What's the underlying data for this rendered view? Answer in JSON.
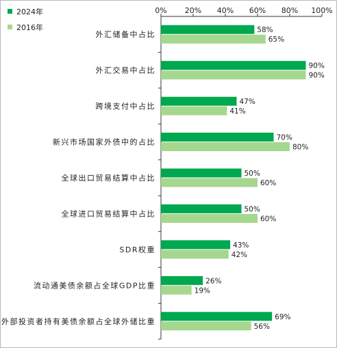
{
  "chart_data": {
    "type": "bar",
    "orientation": "horizontal",
    "title": "",
    "xlabel": "",
    "ylabel": "",
    "xlim": [
      0,
      100
    ],
    "x_axis_position": "top",
    "tick_labels": [
      "0%",
      "20%",
      "40%",
      "60%",
      "80%",
      "100%"
    ],
    "grid": false,
    "legend_position": "top-left",
    "categories": [
      "外汇储备中占比",
      "外汇交易中占比",
      "跨境支付中占比",
      "新兴市场国家外债中的占比",
      "全球出口贸易结算中占比",
      "全球进口贸易结算中占比",
      "SDR权重",
      "流动通美债余额占全球GDP比重",
      "外部投资者持有美债余额占全球外储比重"
    ],
    "series": [
      {
        "name": "2024年",
        "color": "#00a84f",
        "values": [
          58,
          90,
          47,
          70,
          50,
          50,
          43,
          26,
          69
        ],
        "labels": [
          "58%",
          "90%",
          "47%",
          "70%",
          "50%",
          "50%",
          "43%",
          "26%",
          "69%"
        ]
      },
      {
        "name": "2016年",
        "color": "#a6d78f",
        "values": [
          65,
          90,
          41,
          80,
          60,
          60,
          42,
          19,
          56
        ],
        "labels": [
          "65%",
          "90%",
          "41%",
          "80%",
          "60%",
          "60%",
          "42%",
          "19%",
          "56%"
        ]
      }
    ]
  }
}
